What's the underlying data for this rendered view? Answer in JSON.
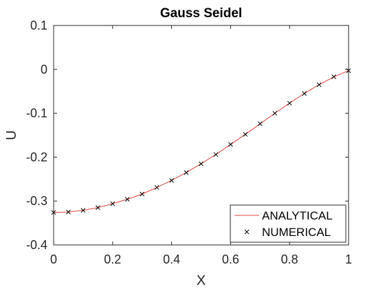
{
  "chart_data": {
    "type": "line",
    "title": "Gauss Seidel",
    "xlabel": "X",
    "ylabel": "U",
    "xlim": [
      0,
      1
    ],
    "ylim": [
      -0.4,
      0.1
    ],
    "xticks": [
      0,
      0.2,
      0.4,
      0.6,
      0.8,
      1
    ],
    "xtick_labels": [
      "0",
      "0.2",
      "0.4",
      "0.6",
      "0.8",
      "1"
    ],
    "yticks": [
      -0.4,
      -0.3,
      -0.2,
      -0.1,
      0,
      0.1
    ],
    "ytick_labels": [
      "-0.4",
      "-0.3",
      "-0.2",
      "-0.1",
      "0",
      "0.1"
    ],
    "grid": false,
    "legend_position": "bottom-right",
    "series": [
      {
        "name": "ANALYTICAL",
        "style": "line",
        "color": "#e04040",
        "x": [
          0,
          0.05,
          0.1,
          0.15,
          0.2,
          0.25,
          0.3,
          0.35,
          0.4,
          0.45,
          0.5,
          0.55,
          0.6,
          0.65,
          0.7,
          0.75,
          0.8,
          0.85,
          0.9,
          0.95,
          1
        ],
        "y": [
          -0.326,
          -0.325,
          -0.321,
          -0.315,
          -0.306,
          -0.296,
          -0.284,
          -0.269,
          -0.253,
          -0.235,
          -0.215,
          -0.194,
          -0.171,
          -0.148,
          -0.124,
          -0.1,
          -0.077,
          -0.055,
          -0.035,
          -0.017,
          -0.003
        ]
      },
      {
        "name": "NUMERICAL",
        "style": "marker-x",
        "color": "#000000",
        "x": [
          0,
          0.05,
          0.1,
          0.15,
          0.2,
          0.25,
          0.3,
          0.35,
          0.4,
          0.45,
          0.5,
          0.55,
          0.6,
          0.65,
          0.7,
          0.75,
          0.8,
          0.85,
          0.9,
          0.95,
          1
        ],
        "y": [
          -0.326,
          -0.325,
          -0.321,
          -0.315,
          -0.306,
          -0.296,
          -0.284,
          -0.269,
          -0.253,
          -0.235,
          -0.215,
          -0.194,
          -0.171,
          -0.148,
          -0.124,
          -0.1,
          -0.077,
          -0.055,
          -0.035,
          -0.017,
          -0.003
        ]
      }
    ]
  }
}
